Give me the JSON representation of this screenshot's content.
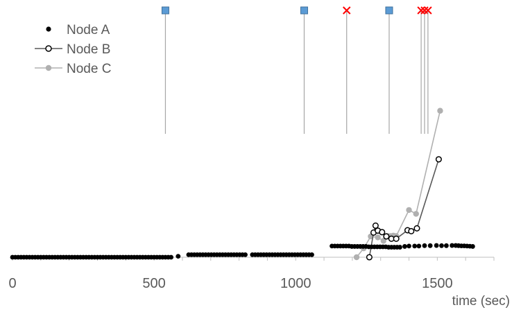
{
  "chart_data": {
    "type": "scatter",
    "title": "",
    "xlabel": "time (sec)",
    "ylabel": "",
    "xlim": [
      0,
      1700
    ],
    "ylim": [
      0,
      100
    ],
    "grid": false,
    "legend_position": "top-left",
    "x_ticks": [
      "0",
      "500",
      "1000",
      "1500"
    ],
    "x_tick_values": [
      0,
      500,
      1000,
      1500
    ],
    "series": [
      {
        "name": "Node A",
        "style": "markers-only",
        "color": "#000000",
        "marker": "filled-circle",
        "x": [
          0,
          10,
          20,
          30,
          40,
          50,
          60,
          70,
          80,
          90,
          100,
          110,
          120,
          130,
          140,
          150,
          160,
          170,
          180,
          190,
          200,
          210,
          220,
          230,
          240,
          250,
          260,
          270,
          280,
          290,
          300,
          310,
          320,
          330,
          340,
          350,
          360,
          370,
          380,
          390,
          400,
          410,
          420,
          430,
          440,
          450,
          460,
          470,
          480,
          490,
          500,
          510,
          520,
          530,
          540,
          550,
          560,
          585,
          622,
          632,
          642,
          652,
          662,
          672,
          682,
          692,
          702,
          712,
          722,
          732,
          742,
          752,
          762,
          772,
          782,
          792,
          802,
          812,
          822,
          847,
          857,
          867,
          877,
          887,
          897,
          907,
          917,
          927,
          937,
          947,
          957,
          967,
          977,
          987,
          997,
          1007,
          1017,
          1027,
          1037,
          1047,
          1057,
          1128,
          1138,
          1148,
          1158,
          1168,
          1178,
          1188,
          1198,
          1208,
          1218,
          1228,
          1238,
          1248,
          1258,
          1268,
          1278,
          1288,
          1298,
          1308,
          1318,
          1328,
          1338,
          1348,
          1358,
          1368,
          1385,
          1400,
          1420,
          1435,
          1455,
          1475,
          1497,
          1515,
          1532,
          1552,
          1565,
          1575,
          1585,
          1595,
          1605,
          1615,
          1625
        ],
        "y": [
          0,
          0,
          0,
          0,
          0,
          0,
          0,
          0,
          0,
          0,
          0,
          0,
          0,
          0,
          0,
          0,
          0,
          0,
          0,
          0,
          0,
          0,
          0,
          0,
          0,
          0,
          0,
          0,
          0,
          0,
          0,
          0,
          0,
          0,
          0,
          0,
          0,
          0,
          0,
          0,
          0,
          0,
          0,
          0,
          0,
          0,
          0,
          0,
          0,
          0,
          0,
          0,
          0,
          0,
          0,
          0,
          0,
          0.5,
          1.3,
          1.3,
          1.3,
          1.3,
          1.3,
          1.3,
          1.3,
          1.3,
          1.3,
          1.3,
          1.3,
          1.3,
          1.3,
          1.3,
          1.3,
          1.3,
          1.3,
          1.3,
          1.3,
          1.3,
          1.3,
          1.3,
          1.3,
          1.3,
          1.3,
          1.3,
          1.3,
          1.3,
          1.3,
          1.3,
          1.3,
          1.3,
          1.3,
          1.3,
          1.3,
          1.3,
          1.3,
          1.3,
          1.3,
          1.3,
          1.3,
          1.3,
          1.3,
          5.8,
          5.8,
          5.8,
          5.8,
          5.8,
          5.8,
          5.8,
          5.6,
          5.6,
          5.6,
          5.6,
          5.6,
          5.6,
          5.4,
          5.4,
          5.4,
          5.4,
          5.4,
          5.4,
          5.4,
          5.2,
          5.2,
          5.2,
          5.2,
          5.2,
          5.6,
          5.8,
          5.8,
          5.8,
          6.0,
          6.0,
          6.1,
          6.0,
          6.0,
          6.1,
          6.1,
          6.0,
          5.9,
          5.9,
          5.8,
          5.7,
          5.6
        ]
      },
      {
        "name": "Node B",
        "style": "line-markers",
        "color": "#595959",
        "marker": "open-circle",
        "x": [
          1260,
          1275,
          1282,
          1290,
          1305,
          1320,
          1338,
          1355,
          1395,
          1408,
          1428,
          1505
        ],
        "y": [
          0,
          12.8,
          16.4,
          13.8,
          13.0,
          10.8,
          9.6,
          9.6,
          14.0,
          13.5,
          15.0,
          50.8
        ]
      },
      {
        "name": "Node C",
        "style": "line-markers",
        "color": "#b0b0b0",
        "marker": "filled-circle",
        "x": [
          1215,
          1240,
          1265,
          1290,
          1310,
          1325,
          1335,
          1345,
          1355,
          1400,
          1425,
          1510
        ],
        "y": [
          0,
          4.6,
          10.8,
          10.3,
          8.5,
          11.0,
          11.0,
          11.2,
          11.0,
          24.5,
          22.5,
          76.0
        ]
      }
    ],
    "event_markers": [
      {
        "x": 540,
        "symbol": "square",
        "color": "#5b9bd5"
      },
      {
        "x": 1030,
        "symbol": "square",
        "color": "#5b9bd5"
      },
      {
        "x": 1180,
        "symbol": "cross",
        "color": "#ff0000"
      },
      {
        "x": 1330,
        "symbol": "square",
        "color": "#5b9bd5"
      },
      {
        "x": 1443,
        "symbol": "cross",
        "color": "#ff0000"
      },
      {
        "x": 1455,
        "symbol": "cross",
        "color": "#ff0000"
      },
      {
        "x": 1467,
        "symbol": "cross",
        "color": "#ff0000"
      }
    ]
  }
}
